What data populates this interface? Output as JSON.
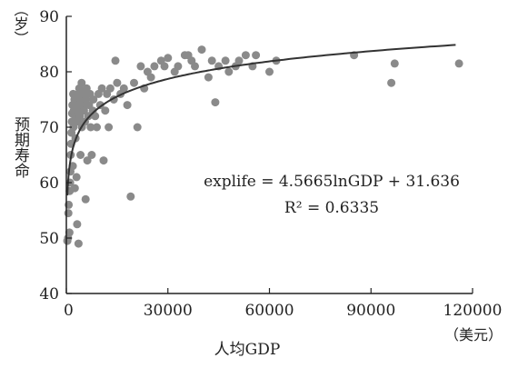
{
  "chart_data": {
    "type": "scatter",
    "title": "",
    "xlabel": "人均GDP",
    "ylabel": "预期寿命",
    "x_unit": "（美元）",
    "y_unit": "（岁）",
    "xlim": [
      0,
      120000
    ],
    "ylim": [
      40,
      90
    ],
    "xticks": [
      0,
      30000,
      60000,
      90000,
      120000
    ],
    "yticks": [
      40,
      50,
      60,
      70,
      80,
      90
    ],
    "xtick_labels": [
      "0",
      "30000",
      "60000",
      "90000",
      "120000"
    ],
    "ytick_labels": [
      "40",
      "50",
      "60",
      "70",
      "80",
      "90"
    ],
    "grid": false,
    "legend": "none",
    "equation": "explife = 4.5665lnGDP + 31.636",
    "r_squared": "R² = 0.6335",
    "trendline": {
      "type": "log",
      "a": 4.5665,
      "b": 31.636,
      "x_range": [
        300,
        115000
      ]
    },
    "colors": {
      "points": "#8a8a8a",
      "trendline": "#333333",
      "axis": "#222222"
    },
    "points": [
      [
        300,
        49.5
      ],
      [
        500,
        50
      ],
      [
        600,
        54.5
      ],
      [
        700,
        56
      ],
      [
        900,
        51
      ],
      [
        1000,
        58.5
      ],
      [
        1100,
        60
      ],
      [
        1200,
        62
      ],
      [
        1300,
        65
      ],
      [
        1400,
        67
      ],
      [
        1500,
        69
      ],
      [
        1600,
        71
      ],
      [
        1700,
        72.5
      ],
      [
        1800,
        74
      ],
      [
        1900,
        63
      ],
      [
        2000,
        76
      ],
      [
        2100,
        70
      ],
      [
        2200,
        73
      ],
      [
        2400,
        75
      ],
      [
        2500,
        59
      ],
      [
        2600,
        72
      ],
      [
        2700,
        68
      ],
      [
        2800,
        74
      ],
      [
        3000,
        61
      ],
      [
        3100,
        75
      ],
      [
        3200,
        52.5
      ],
      [
        3300,
        71
      ],
      [
        3400,
        73
      ],
      [
        3500,
        76
      ],
      [
        3600,
        49
      ],
      [
        3700,
        74
      ],
      [
        3800,
        77
      ],
      [
        4000,
        72
      ],
      [
        4200,
        65
      ],
      [
        4300,
        75
      ],
      [
        4500,
        78
      ],
      [
        4600,
        70
      ],
      [
        4800,
        74
      ],
      [
        5000,
        76
      ],
      [
        5200,
        73
      ],
      [
        5500,
        71
      ],
      [
        5700,
        57
      ],
      [
        5800,
        75
      ],
      [
        6000,
        77
      ],
      [
        6200,
        64
      ],
      [
        6500,
        72
      ],
      [
        6700,
        74
      ],
      [
        7000,
        76
      ],
      [
        7200,
        70
      ],
      [
        7500,
        65
      ],
      [
        7800,
        73
      ],
      [
        8000,
        75
      ],
      [
        8500,
        72
      ],
      [
        9000,
        70
      ],
      [
        9500,
        76
      ],
      [
        10000,
        74
      ],
      [
        10500,
        77
      ],
      [
        11000,
        64
      ],
      [
        11500,
        73
      ],
      [
        12000,
        76
      ],
      [
        12500,
        70
      ],
      [
        13000,
        77
      ],
      [
        14000,
        75
      ],
      [
        14500,
        82
      ],
      [
        15000,
        78
      ],
      [
        16000,
        76
      ],
      [
        17000,
        77
      ],
      [
        18000,
        74
      ],
      [
        19000,
        57.5
      ],
      [
        20000,
        78
      ],
      [
        21000,
        70
      ],
      [
        22000,
        81
      ],
      [
        23000,
        77
      ],
      [
        24000,
        80
      ],
      [
        25000,
        79
      ],
      [
        26000,
        81
      ],
      [
        28000,
        82
      ],
      [
        29000,
        81
      ],
      [
        30000,
        82.5
      ],
      [
        32000,
        80
      ],
      [
        33000,
        81
      ],
      [
        35000,
        83
      ],
      [
        36000,
        83
      ],
      [
        37000,
        82
      ],
      [
        38000,
        81
      ],
      [
        40000,
        84
      ],
      [
        42000,
        79
      ],
      [
        43000,
        82
      ],
      [
        44000,
        74.5
      ],
      [
        45000,
        81
      ],
      [
        47000,
        82
      ],
      [
        48000,
        80
      ],
      [
        50000,
        81
      ],
      [
        51000,
        82
      ],
      [
        53000,
        83
      ],
      [
        55000,
        81
      ],
      [
        56000,
        83
      ],
      [
        60000,
        80
      ],
      [
        62000,
        82
      ],
      [
        85000,
        83
      ],
      [
        96000,
        78
      ],
      [
        97000,
        81.5
      ],
      [
        116000,
        81.5
      ]
    ]
  }
}
